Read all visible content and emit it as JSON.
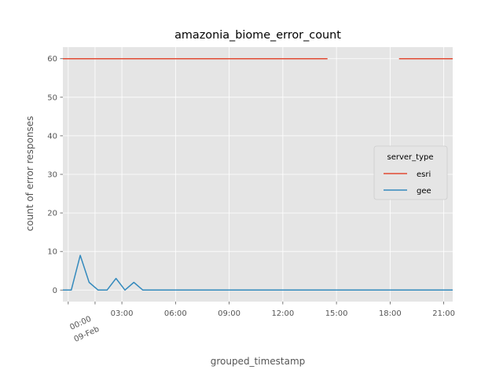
{
  "chart_data": {
    "type": "line",
    "title": "amazonia_biome_error_count",
    "xlabel": "grouped_timestamp",
    "ylabel": "count of error responses",
    "x_unit": "hours since 00:00 09-Feb",
    "xlim": [
      -0.3,
      21.5
    ],
    "ylim": [
      -3,
      63
    ],
    "xticks": [
      {
        "value": 1.5,
        "label": "",
        "line2": ""
      },
      {
        "value": 3,
        "label": "03:00",
        "line2": ""
      },
      {
        "value": 6,
        "label": "06:00",
        "line2": ""
      },
      {
        "value": 9,
        "label": "09:00",
        "line2": ""
      },
      {
        "value": 12,
        "label": "12:00",
        "line2": ""
      },
      {
        "value": 15,
        "label": "15:00",
        "line2": ""
      },
      {
        "value": 18,
        "label": "18:00",
        "line2": ""
      },
      {
        "value": 21,
        "label": "21:00",
        "line2": ""
      }
    ],
    "first_tick": {
      "value": 0,
      "label": "00:00",
      "line2": "09-Feb"
    },
    "yticks": [
      0,
      10,
      20,
      30,
      40,
      50,
      60
    ],
    "grid": true,
    "background": "#e5e5e5",
    "grid_color": "#ffffff",
    "legend": {
      "title": "server_type",
      "placement": "center-right"
    },
    "series": [
      {
        "name": "esri",
        "color": "#e24a33",
        "segments": [
          [
            [
              -0.3,
              60
            ],
            [
              14.5,
              60
            ]
          ],
          [
            [
              18.5,
              60
            ],
            [
              21.5,
              60
            ]
          ]
        ]
      },
      {
        "name": "gee",
        "color": "#348abd",
        "segments": [
          [
            [
              -0.3,
              0
            ],
            [
              0.17,
              0
            ],
            [
              0.67,
              9
            ],
            [
              1.17,
              2
            ],
            [
              1.67,
              0
            ],
            [
              2.17,
              0
            ],
            [
              2.67,
              3
            ],
            [
              3.17,
              0
            ],
            [
              3.67,
              2
            ],
            [
              4.17,
              0
            ],
            [
              21.5,
              0
            ]
          ]
        ]
      }
    ]
  }
}
